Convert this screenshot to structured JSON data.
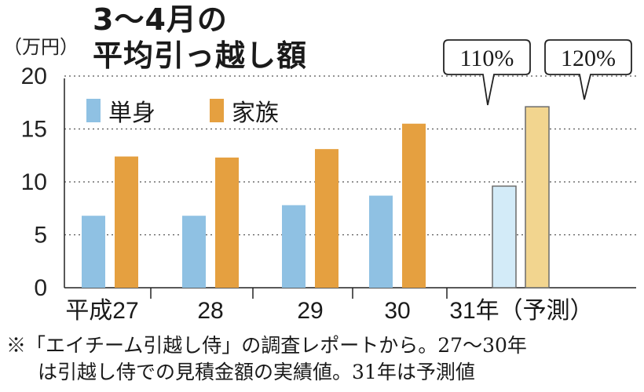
{
  "title_line1": "3～4月の",
  "title_line2": "平均引っ越し額",
  "unit_label": "（万円）",
  "footnote_line1": "※「エイチーム引越し侍」の調査レポートから。27～30年",
  "footnote_line2": "は引越し侍での見積金額の実績値。31年は予測値",
  "colors": {
    "single": "#8fc1e3",
    "family": "#e5a040",
    "single_forecast": "#d3ebf8",
    "family_forecast": "#f2d58f",
    "forecast_stroke": "#6b6b6b"
  },
  "chart_data": {
    "type": "bar",
    "categories": [
      "平成27",
      "28",
      "29",
      "30",
      "31年（予測）"
    ],
    "series": [
      {
        "name": "単身",
        "values": [
          6.8,
          6.8,
          7.8,
          8.7,
          9.6
        ]
      },
      {
        "name": "家族",
        "values": [
          12.4,
          12.3,
          13.1,
          15.5,
          17.1
        ]
      }
    ],
    "forecast_category_index": 4,
    "yticks": [
      0,
      5,
      10,
      15,
      20
    ],
    "ylim": [
      0,
      22
    ],
    "grid": "dotted horizontal",
    "legend_position": "top-left",
    "callouts": [
      {
        "text": "110%",
        "series": "単身"
      },
      {
        "text": "120%",
        "series": "家族"
      }
    ]
  }
}
